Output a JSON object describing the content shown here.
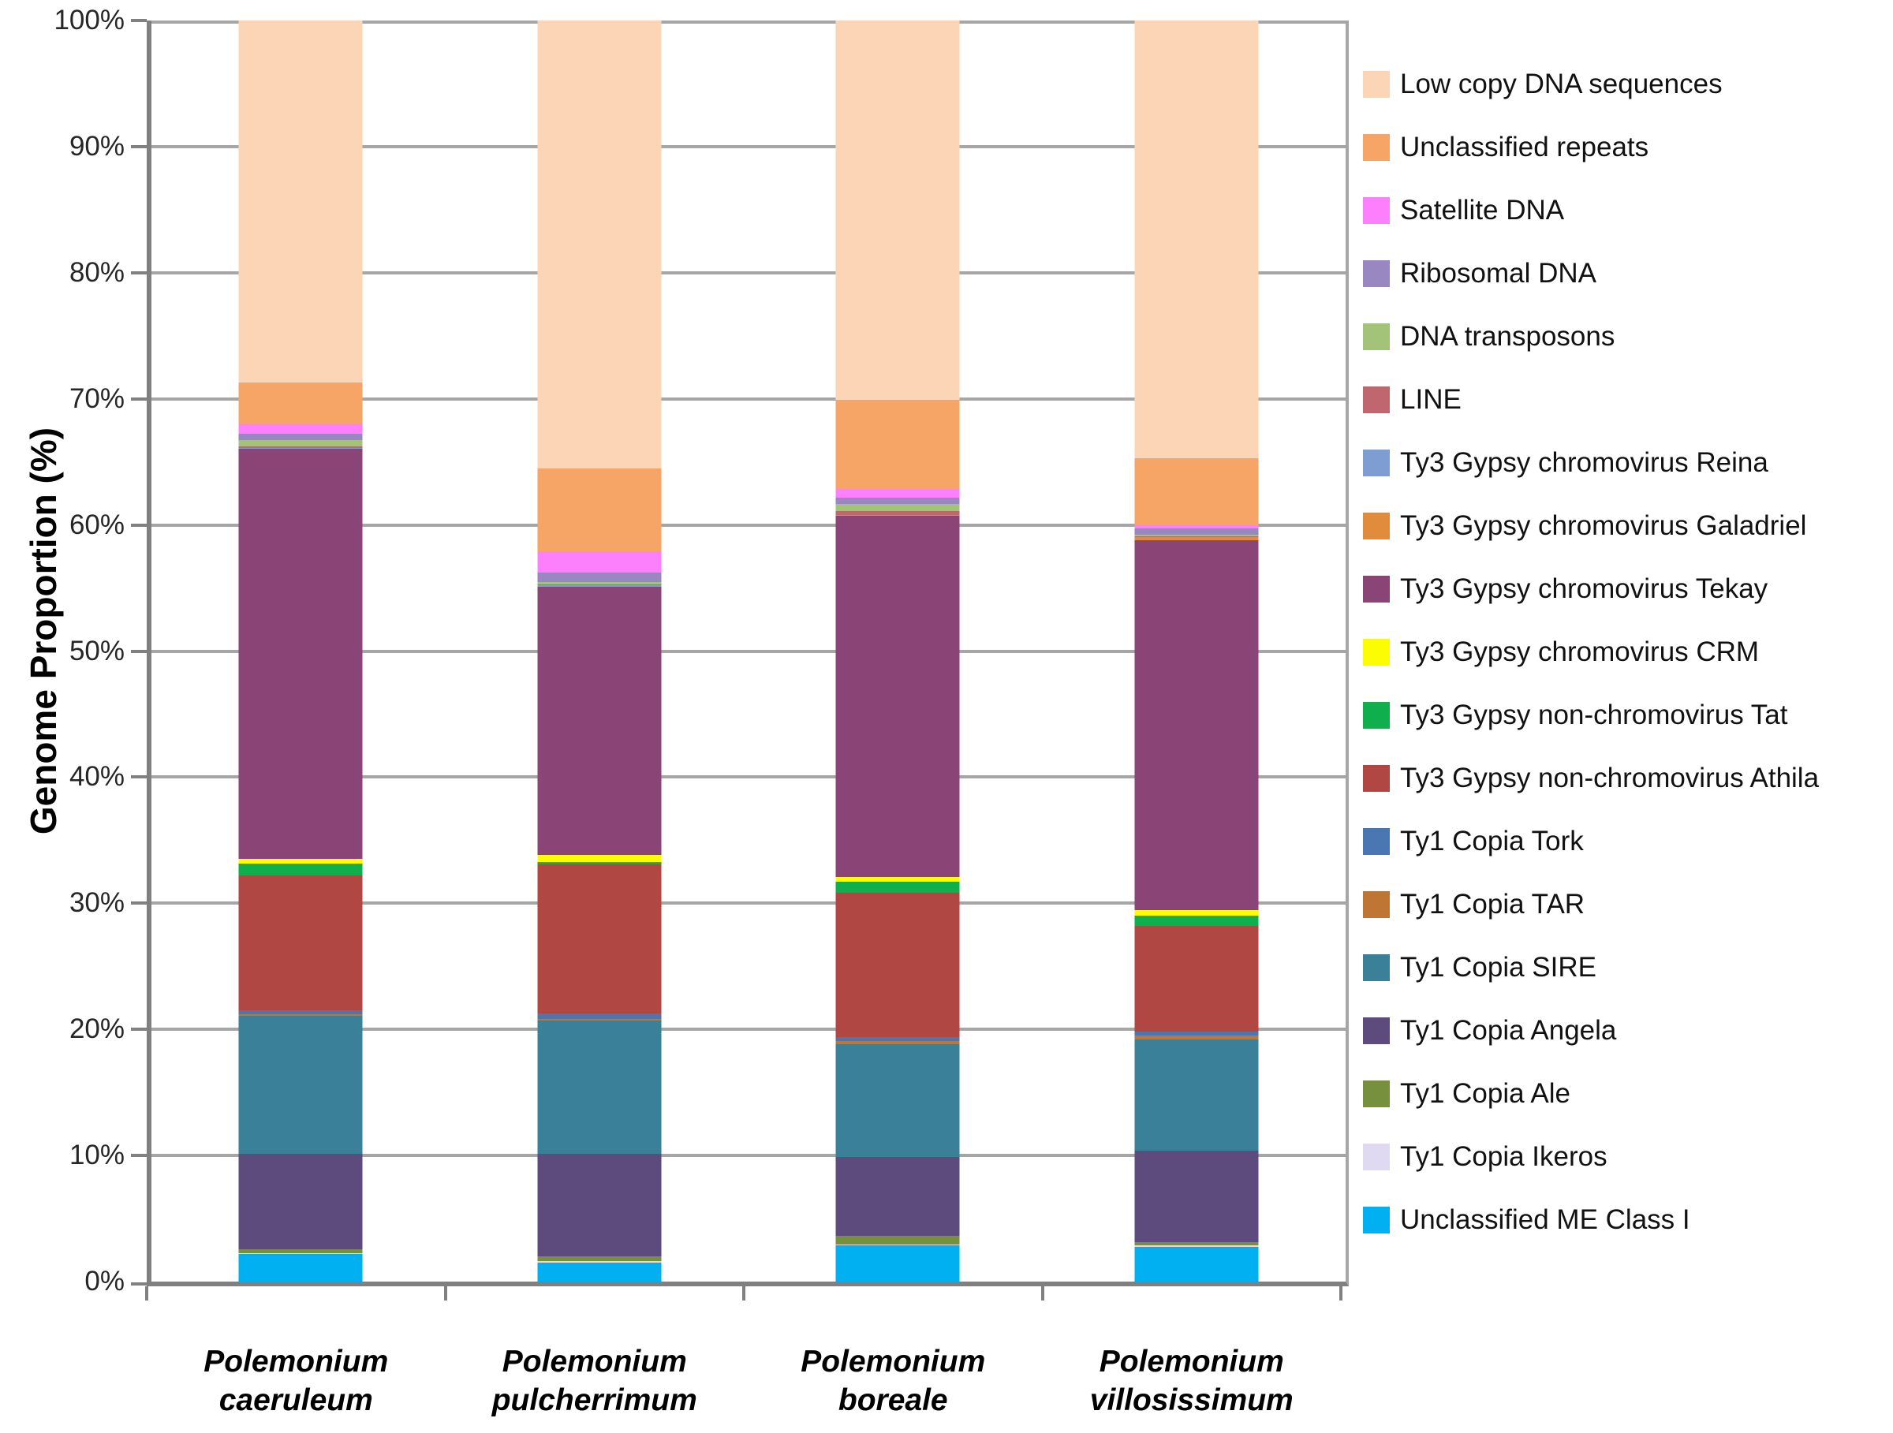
{
  "chart_data": {
    "type": "bar",
    "stacked": true,
    "title": "",
    "xlabel": "",
    "ylabel": "Genome Proportion (%)",
    "ylim": [
      0,
      100
    ],
    "grid": true,
    "legend_position": "right",
    "y_tick_labels": [
      "0%",
      "10%",
      "20%",
      "30%",
      "40%",
      "50%",
      "60%",
      "70%",
      "80%",
      "90%",
      "100%"
    ],
    "categories": [
      "Polemonium caeruleum",
      "Polemonium pulcherrimum",
      "Polemonium boreale",
      "Polemonium villosissimum"
    ],
    "series": [
      {
        "name": "Low copy DNA sequences",
        "color": "#FBD5B5",
        "values": [
          28.7,
          35.5,
          30.1,
          34.7
        ]
      },
      {
        "name": "Unclassified repeats",
        "color": "#F6A566",
        "values": [
          3.25,
          6.6,
          7.05,
          5.3
        ]
      },
      {
        "name": "Satellite DNA",
        "color": "#FC80FC",
        "values": [
          0.85,
          1.7,
          0.7,
          0.3
        ]
      },
      {
        "name": "Ribosomal DNA",
        "color": "#9887C0",
        "values": [
          0.5,
          0.7,
          0.5,
          0.5
        ]
      },
      {
        "name": "DNA transposons",
        "color": "#A3C379",
        "values": [
          0.5,
          0.2,
          0.55,
          0.1
        ]
      },
      {
        "name": "LINE",
        "color": "#C0666E",
        "values": [
          0.1,
          0.1,
          0.3,
          0.05
        ]
      },
      {
        "name": "Ty3 Gypsy chromovirus Reina",
        "color": "#7D9DD3",
        "values": [
          0.05,
          0.05,
          0.05,
          0.05
        ]
      },
      {
        "name": "Ty3 Gypsy chromovirus Galadriel",
        "color": "#E18B3D",
        "values": [
          0.05,
          0.05,
          0.05,
          0.2
        ]
      },
      {
        "name": "Ty3 Gypsy chromovirus Tekay",
        "color": "#8B4476",
        "values": [
          32.5,
          21.3,
          28.6,
          29.35
        ]
      },
      {
        "name": "Ty3 Gypsy chromovirus CRM",
        "color": "#FCFC03",
        "values": [
          0.4,
          0.55,
          0.4,
          0.45
        ]
      },
      {
        "name": "Ty3 Gypsy non-chromovirus Tat",
        "color": "#0FAF4D",
        "values": [
          0.9,
          0.15,
          0.9,
          0.8
        ]
      },
      {
        "name": "Ty3 Gypsy non-chromovirus Athila",
        "color": "#B14743",
        "values": [
          10.7,
          11.85,
          11.4,
          8.4
        ]
      },
      {
        "name": "Ty1 Copia Tork",
        "color": "#4A77B2",
        "values": [
          0.35,
          0.4,
          0.3,
          0.3
        ]
      },
      {
        "name": "Ty1 Copia TAR",
        "color": "#BF7533",
        "values": [
          0.15,
          0.15,
          0.3,
          0.3
        ]
      },
      {
        "name": "Ty1 Copia SIRE",
        "color": "#3A8098",
        "values": [
          10.9,
          10.6,
          8.9,
          8.85
        ]
      },
      {
        "name": "Ty1 Copia Angela",
        "color": "#5D4B7E",
        "values": [
          7.6,
          8.1,
          6.3,
          7.25
        ]
      },
      {
        "name": "Ty1 Copia Ale",
        "color": "#77903D",
        "values": [
          0.3,
          0.4,
          0.65,
          0.25
        ]
      },
      {
        "name": "Ty1 Copia Ikeros",
        "color": "#DFDAF1",
        "values": [
          0.05,
          0.1,
          0.05,
          0.1
        ]
      },
      {
        "name": "Unclassified ME Class I",
        "color": "#00B0F0",
        "values": [
          2.2,
          1.5,
          2.9,
          2.75
        ]
      }
    ]
  }
}
